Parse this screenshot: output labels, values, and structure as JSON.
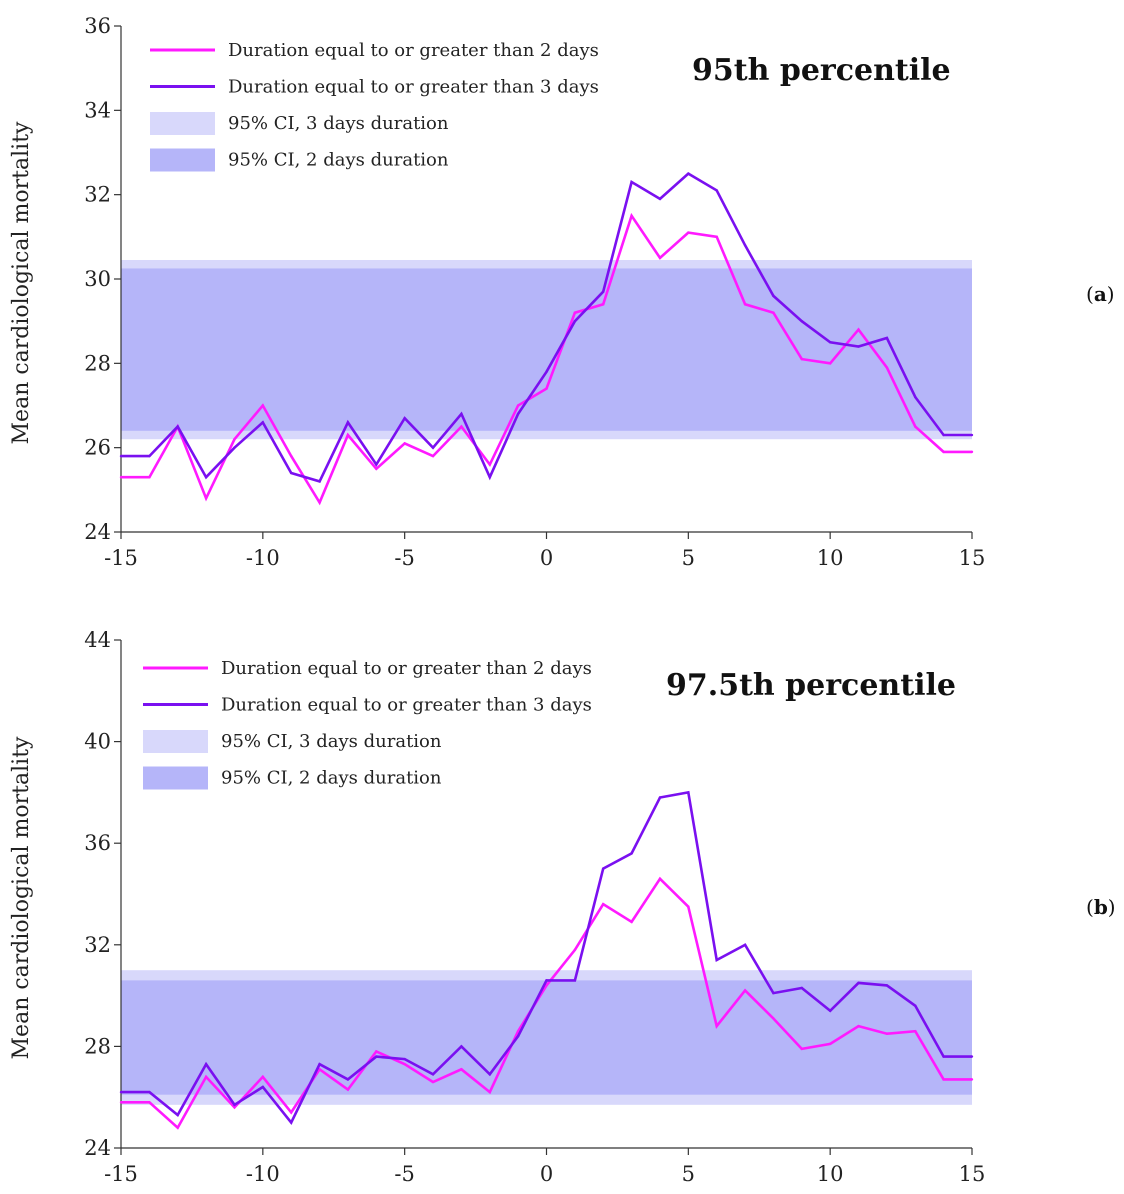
{
  "panel_labels": [
    {
      "open": "(",
      "letter": "a",
      "close": ")"
    },
    {
      "open": "(",
      "letter": "b",
      "close": ")"
    }
  ],
  "colors": {
    "line2": "#ff1aff",
    "line3": "#7a10f0",
    "ci3": "#d8d8fb",
    "ci2": "#b5b5f9",
    "axis": "#333333"
  },
  "chart_data": [
    {
      "type": "line",
      "title": "95th percentile",
      "ylabel": "Mean cardiological mortality",
      "xlabel": "",
      "xlim": [
        -15,
        15
      ],
      "ylim": [
        24,
        36
      ],
      "xticks": [
        -15,
        -10,
        -5,
        0,
        5,
        10,
        15
      ],
      "yticks": [
        24,
        26,
        28,
        30,
        32,
        34,
        36
      ],
      "x": [
        -15,
        -14,
        -13,
        -12,
        -11,
        -10,
        -9,
        -8,
        -7,
        -6,
        -5,
        -4,
        -3,
        -2,
        -1,
        0,
        1,
        2,
        3,
        4,
        5,
        6,
        7,
        8,
        9,
        10,
        11,
        12,
        13,
        14,
        15
      ],
      "series": [
        {
          "name": "Duration equal to or greater than 2 days",
          "values": [
            25.3,
            25.3,
            26.5,
            24.8,
            26.2,
            27.0,
            25.8,
            24.7,
            26.3,
            25.5,
            26.1,
            25.8,
            26.5,
            25.6,
            27.0,
            27.4,
            29.2,
            29.4,
            31.5,
            30.5,
            31.1,
            31.0,
            29.4,
            29.2,
            28.1,
            28.0,
            28.8,
            27.9,
            26.5,
            25.9,
            25.9
          ]
        },
        {
          "name": "Duration equal to or greater than 3 days",
          "values": [
            25.8,
            25.8,
            26.5,
            25.3,
            26.0,
            26.6,
            25.4,
            25.2,
            26.6,
            25.6,
            26.7,
            26.0,
            26.8,
            25.3,
            26.8,
            27.8,
            29.0,
            29.7,
            32.3,
            31.9,
            32.5,
            32.1,
            30.8,
            29.6,
            29.0,
            28.5,
            28.4,
            28.6,
            27.2,
            26.3,
            26.3
          ]
        }
      ],
      "bands": [
        {
          "name": "95% CI, 3 days duration",
          "range": [
            26.2,
            30.45
          ]
        },
        {
          "name": "95% CI, 2 days duration",
          "range": [
            26.4,
            30.25
          ]
        }
      ]
    },
    {
      "type": "line",
      "title": "97.5th percentile",
      "ylabel": "Mean cardiological mortality",
      "xlabel": "",
      "xlim": [
        -15,
        15
      ],
      "ylim": [
        24,
        44
      ],
      "xticks": [
        -15,
        -10,
        -5,
        0,
        5,
        10,
        15
      ],
      "yticks": [
        24,
        28,
        32,
        36,
        40,
        44
      ],
      "x": [
        -15,
        -14,
        -13,
        -12,
        -11,
        -10,
        -9,
        -8,
        -7,
        -6,
        -5,
        -4,
        -3,
        -2,
        -1,
        0,
        1,
        2,
        3,
        4,
        5,
        6,
        7,
        8,
        9,
        10,
        11,
        12,
        13,
        14,
        15
      ],
      "series": [
        {
          "name": "Duration equal to or greater than 2 days",
          "values": [
            25.8,
            25.8,
            24.8,
            26.8,
            25.6,
            26.8,
            25.4,
            27.1,
            26.3,
            27.8,
            27.3,
            26.6,
            27.1,
            26.2,
            28.6,
            30.4,
            31.8,
            33.6,
            32.9,
            34.6,
            33.5,
            28.8,
            30.2,
            29.1,
            27.9,
            28.1,
            28.8,
            28.5,
            28.6,
            26.7,
            26.7
          ]
        },
        {
          "name": "Duration equal to or greater than 3 days",
          "values": [
            26.2,
            26.2,
            25.3,
            27.3,
            25.7,
            26.4,
            25.0,
            27.3,
            26.7,
            27.6,
            27.5,
            26.9,
            28.0,
            26.9,
            28.4,
            30.6,
            30.6,
            35.0,
            35.6,
            37.8,
            38.0,
            31.4,
            32.0,
            30.1,
            30.3,
            29.4,
            30.5,
            30.4,
            29.6,
            27.6,
            27.6
          ]
        }
      ],
      "bands": [
        {
          "name": "95% CI, 3 days duration",
          "range": [
            25.7,
            31.0
          ]
        },
        {
          "name": "95% CI, 2 days duration",
          "range": [
            26.1,
            30.6
          ]
        }
      ]
    }
  ]
}
